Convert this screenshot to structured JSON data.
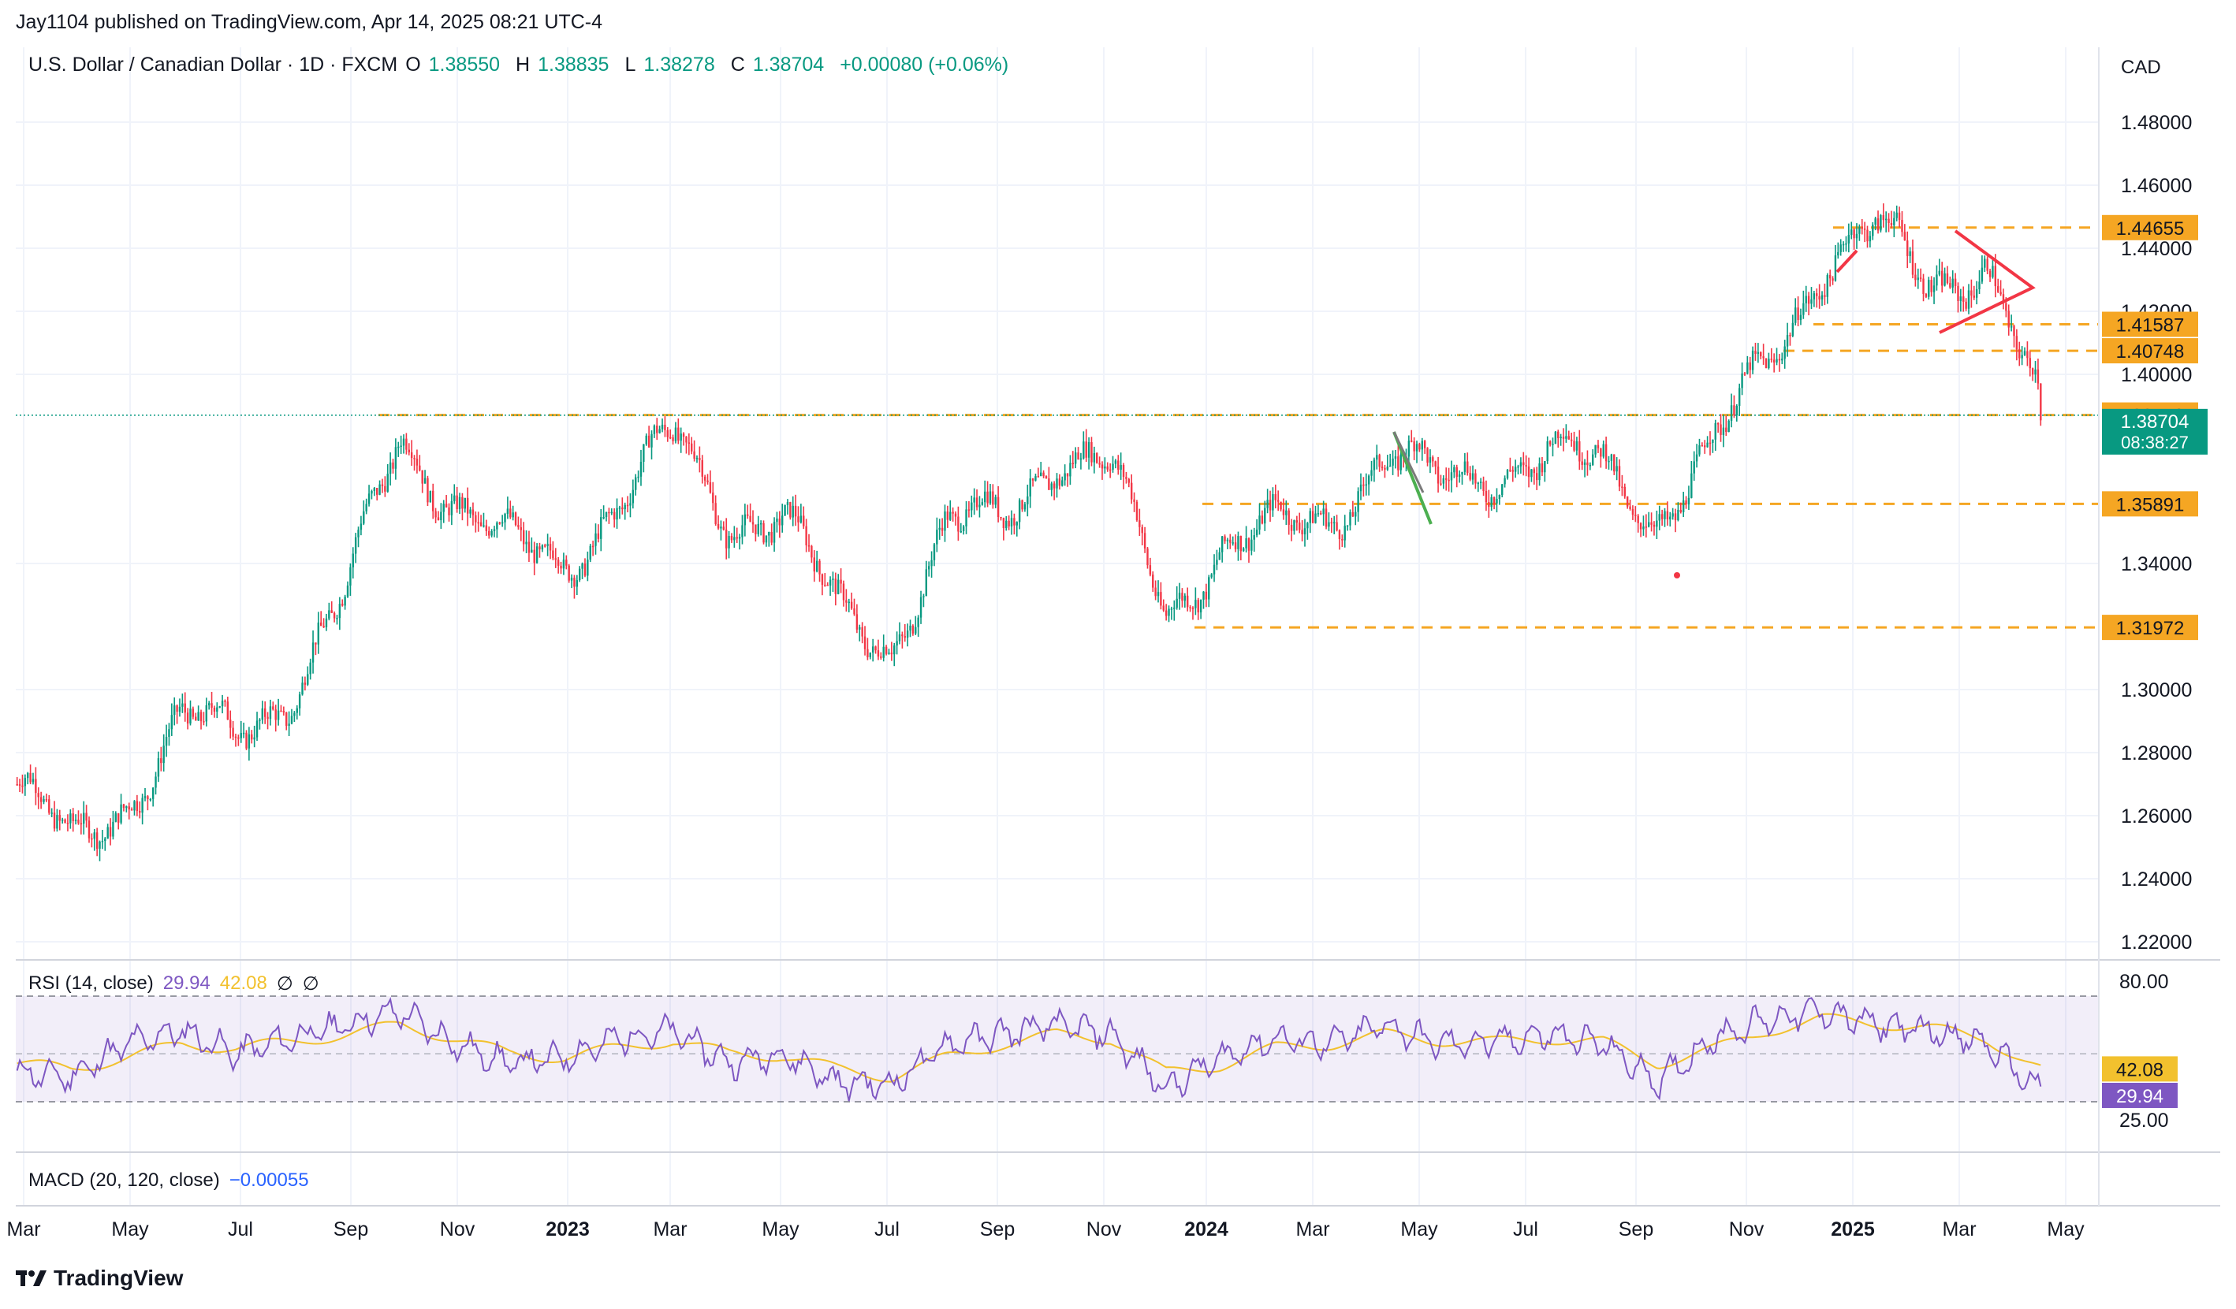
{
  "header": {
    "published": "Jay1104 published on TradingView.com, Apr 14, 2025 08:21 UTC-4",
    "symbol": "U.S. Dollar / Canadian Dollar · 1D · FXCM",
    "o_label": "O",
    "o_value": "1.38550",
    "h_label": "H",
    "h_value": "1.38835",
    "l_label": "L",
    "l_value": "1.38278",
    "c_label": "C",
    "c_value": "1.38704",
    "change": "+0.00080 (+0.06%)",
    "currency": "CAD"
  },
  "price_axis": {
    "ticks": [
      "1.48000",
      "1.46000",
      "1.44000",
      "1.42000",
      "1.40000",
      "1.34000",
      "1.30000",
      "1.28000",
      "1.26000",
      "1.24000",
      "1.22000"
    ],
    "levels": [
      {
        "label": "1.44655",
        "color": "#f5a623"
      },
      {
        "label": "1.41587",
        "color": "#f5a623"
      },
      {
        "label": "1.40748",
        "color": "#f5a623"
      },
      {
        "label": "1.38710",
        "color": "#f5a623"
      },
      {
        "label": "1.35891",
        "color": "#f5a623"
      },
      {
        "label": "1.31972",
        "color": "#f5a623"
      }
    ],
    "last_price": "1.38704",
    "countdown": "08:38:27",
    "last_color": "#089981"
  },
  "rsi": {
    "title": "RSI (14, close)",
    "value": "29.94",
    "ma_value": "42.08",
    "empty1": "∅",
    "empty2": "∅",
    "upper": "80.00",
    "lower": "25.00",
    "line_color": "#7e57c2",
    "ma_color": "#f2c12e"
  },
  "macd": {
    "title": "MACD (20, 120, close)",
    "value": "−0.00055"
  },
  "time_axis": [
    "Mar",
    "May",
    "Jul",
    "Sep",
    "Nov",
    "2023",
    "Mar",
    "May",
    "Jul",
    "Sep",
    "Nov",
    "2024",
    "Mar",
    "May",
    "Jul",
    "Sep",
    "Nov",
    "2025",
    "Mar",
    "May"
  ],
  "brand": "TradingView",
  "colors": {
    "up": "#089981",
    "down": "#f23645",
    "level": "#f5a623",
    "triangle": "#f23645",
    "wedge": "#4caf50"
  },
  "chart_data": {
    "type": "candlestick",
    "symbol": "USD/CAD",
    "timeframe": "1D",
    "ylim": [
      1.215,
      1.49
    ],
    "horizontal_levels": [
      1.44655,
      1.41587,
      1.40748,
      1.3871,
      1.35891,
      1.31972
    ],
    "series": [
      {
        "name": "USD/CAD",
        "x": [
          "2022-03",
          "2022-04",
          "2022-05",
          "2022-06",
          "2022-07",
          "2022-08",
          "2022-09",
          "2022-10",
          "2022-11",
          "2022-12",
          "2023-01",
          "2023-02",
          "2023-03",
          "2023-04",
          "2023-05",
          "2023-06",
          "2023-07",
          "2023-08",
          "2023-09",
          "2023-10",
          "2023-11",
          "2023-12",
          "2024-01",
          "2024-02",
          "2024-03",
          "2024-04",
          "2024-05",
          "2024-06",
          "2024-07",
          "2024-08",
          "2024-09",
          "2024-10",
          "2024-11",
          "2024-12",
          "2025-01",
          "2025-02",
          "2025-03",
          "2025-04"
        ],
        "values": [
          1.27,
          1.25,
          1.265,
          1.29,
          1.285,
          1.3,
          1.33,
          1.38,
          1.36,
          1.345,
          1.34,
          1.36,
          1.38,
          1.355,
          1.355,
          1.325,
          1.315,
          1.35,
          1.355,
          1.375,
          1.37,
          1.325,
          1.345,
          1.35,
          1.355,
          1.375,
          1.365,
          1.37,
          1.375,
          1.37,
          1.355,
          1.375,
          1.405,
          1.435,
          1.445,
          1.43,
          1.435,
          1.387
        ]
      }
    ],
    "rsi_values": [
      40,
      38,
      55,
      62,
      50,
      58,
      65,
      72,
      55,
      45,
      48,
      58,
      62,
      45,
      50,
      35,
      34,
      55,
      60,
      65,
      60,
      32,
      48,
      58,
      55,
      65,
      55,
      56,
      60,
      55,
      35,
      58,
      68,
      72,
      65,
      62,
      55,
      30
    ],
    "rsi_ma_values": [
      45,
      42,
      48,
      55,
      53,
      56,
      60,
      65,
      58,
      50,
      48,
      53,
      57,
      50,
      49,
      42,
      38,
      48,
      55,
      60,
      58,
      40,
      44,
      53,
      55,
      60,
      57,
      56,
      58,
      56,
      45,
      52,
      62,
      68,
      66,
      63,
      58,
      42
    ]
  }
}
